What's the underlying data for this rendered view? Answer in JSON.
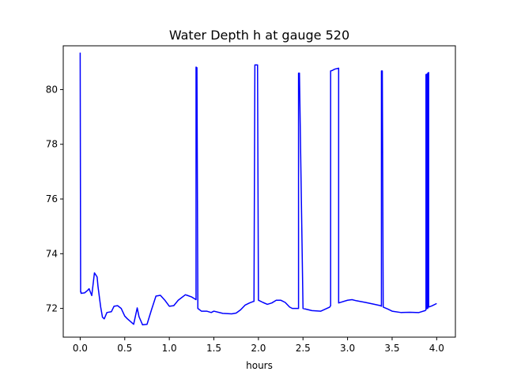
{
  "chart_data": {
    "type": "line",
    "title": "Water Depth h at gauge 520",
    "xlabel": "hours",
    "ylabel": "",
    "xlim": [
      -0.19,
      4.21
    ],
    "ylim": [
      70.95,
      81.6
    ],
    "xticks": [
      0.0,
      0.5,
      1.0,
      1.5,
      2.0,
      2.5,
      3.0,
      3.5,
      4.0
    ],
    "xtick_labels": [
      "0.0",
      "0.5",
      "1.0",
      "1.5",
      "2.0",
      "2.5",
      "3.0",
      "3.5",
      "4.0"
    ],
    "yticks": [
      72,
      74,
      76,
      78,
      80
    ],
    "ytick_labels": [
      "72",
      "74",
      "76",
      "78",
      "80"
    ],
    "grid": false,
    "series": [
      {
        "color": "#0000ff",
        "x": [
          0.0,
          0.0,
          0.005,
          0.01,
          0.01,
          0.05,
          0.08,
          0.1,
          0.13,
          0.16,
          0.19,
          0.2,
          0.23,
          0.25,
          0.27,
          0.3,
          0.35,
          0.38,
          0.42,
          0.46,
          0.5,
          0.53,
          0.6,
          0.64,
          0.66,
          0.7,
          0.75,
          0.8,
          0.85,
          0.9,
          0.95,
          1.0,
          1.05,
          1.1,
          1.18,
          1.2,
          1.25,
          1.3,
          1.3,
          1.31,
          1.32,
          1.32,
          1.36,
          1.42,
          1.47,
          1.5,
          1.6,
          1.7,
          1.75,
          1.8,
          1.85,
          1.9,
          1.94,
          1.95,
          1.96,
          1.99,
          2.0,
          2.05,
          2.1,
          2.15,
          2.2,
          2.25,
          2.3,
          2.35,
          2.38,
          2.45,
          2.45,
          2.46,
          2.5,
          2.5,
          2.6,
          2.7,
          2.8,
          2.81,
          2.81,
          2.83,
          2.84,
          2.86,
          2.9,
          2.9,
          3.0,
          3.05,
          3.1,
          3.2,
          3.3,
          3.37,
          3.38,
          3.38,
          3.39,
          3.39,
          3.4,
          3.45,
          3.5,
          3.6,
          3.7,
          3.8,
          3.87,
          3.88,
          3.88,
          3.89,
          3.89,
          3.9,
          3.9,
          3.91,
          3.91,
          3.95,
          4.0
        ],
        "y": [
          81.35,
          81.1,
          72.6,
          72.6,
          72.55,
          72.57,
          72.65,
          72.72,
          72.47,
          73.3,
          73.15,
          72.8,
          72.05,
          71.68,
          71.62,
          71.85,
          71.88,
          72.08,
          72.1,
          72.0,
          71.72,
          71.62,
          71.42,
          72.02,
          71.7,
          71.4,
          71.42,
          71.95,
          72.45,
          72.48,
          72.3,
          72.08,
          72.1,
          72.3,
          72.5,
          72.48,
          72.42,
          72.32,
          80.82,
          80.8,
          72.3,
          72.0,
          71.9,
          71.9,
          71.85,
          71.9,
          71.82,
          71.8,
          71.83,
          71.95,
          72.12,
          72.2,
          72.25,
          72.26,
          80.9,
          80.9,
          72.3,
          72.22,
          72.15,
          72.2,
          72.3,
          72.3,
          72.22,
          72.05,
          72.0,
          72.0,
          80.6,
          80.6,
          72.05,
          72.0,
          71.92,
          71.9,
          72.05,
          72.1,
          80.68,
          80.7,
          80.72,
          80.75,
          80.78,
          72.2,
          72.3,
          72.32,
          72.28,
          72.22,
          72.15,
          72.1,
          72.08,
          80.68,
          80.68,
          80.66,
          72.05,
          71.98,
          71.9,
          71.85,
          71.86,
          71.85,
          71.92,
          71.95,
          80.55,
          80.56,
          72.0,
          72.0,
          80.6,
          80.62,
          72.05,
          72.1,
          72.18
        ]
      }
    ]
  }
}
